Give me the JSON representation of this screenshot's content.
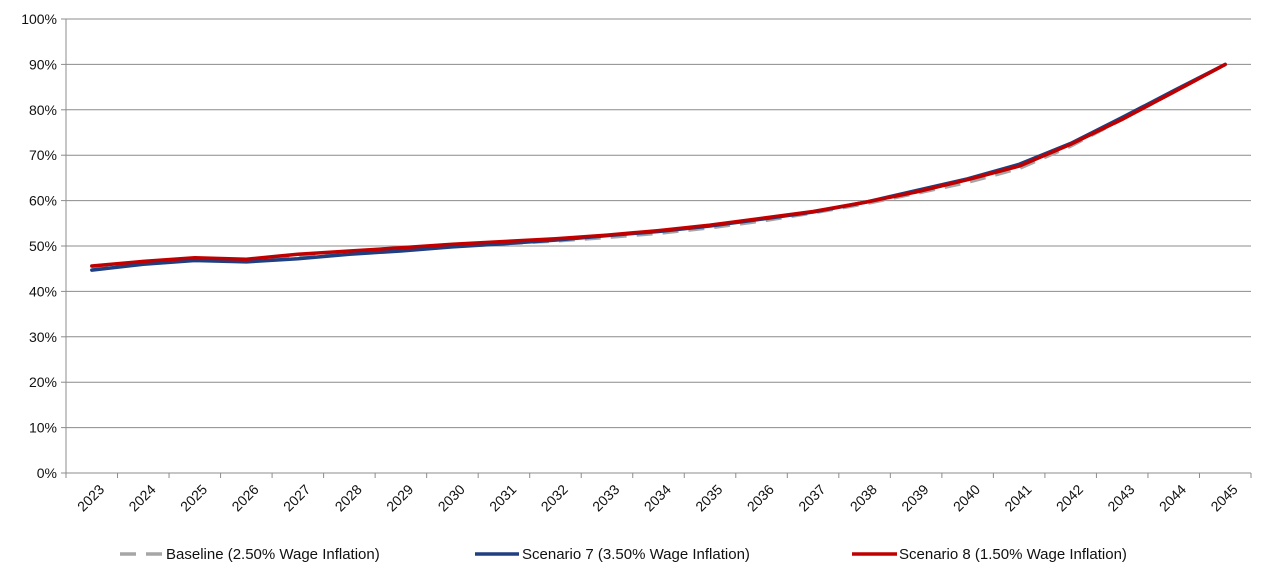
{
  "chart_data": {
    "type": "line",
    "title": "",
    "xlabel": "",
    "ylabel": "",
    "x": [
      "2023",
      "2024",
      "2025",
      "2026",
      "2027",
      "2028",
      "2029",
      "2030",
      "2031",
      "2032",
      "2033",
      "2034",
      "2035",
      "2036",
      "2037",
      "2038",
      "2039",
      "2040",
      "2041",
      "2042",
      "2043",
      "2044",
      "2045"
    ],
    "ylim": [
      0,
      100
    ],
    "y_ticks": [
      "0%",
      "10%",
      "20%",
      "30%",
      "40%",
      "50%",
      "60%",
      "70%",
      "80%",
      "90%",
      "100%"
    ],
    "grid": true,
    "legend_position": "bottom",
    "series": [
      {
        "name": "Baseline (2.50% Wage Inflation)",
        "color": "#a6a6a6",
        "style": "dashed",
        "values": [
          45.2,
          46.4,
          47.2,
          47.0,
          47.7,
          48.4,
          49.1,
          49.9,
          50.5,
          51.1,
          51.9,
          52.8,
          54.0,
          55.5,
          57.3,
          59.3,
          61.6,
          64.0,
          67.1,
          72.0,
          77.9,
          83.9,
          90.0
        ]
      },
      {
        "name": "Scenario 7 (3.50% Wage Inflation)",
        "color": "#1f3f80",
        "style": "solid",
        "values": [
          44.7,
          46.0,
          46.8,
          46.5,
          47.2,
          48.2,
          48.9,
          49.8,
          50.5,
          51.3,
          52.3,
          53.2,
          54.4,
          55.9,
          57.5,
          59.6,
          62.2,
          64.8,
          68.0,
          72.6,
          78.3,
          84.2,
          90.0
        ]
      },
      {
        "name": "Scenario 8 (1.50% Wage Inflation)",
        "color": "#c00000",
        "style": "solid",
        "values": [
          45.6,
          46.6,
          47.4,
          47.1,
          48.2,
          48.9,
          49.6,
          50.4,
          51.0,
          51.6,
          52.4,
          53.4,
          54.6,
          56.1,
          57.6,
          59.6,
          61.9,
          64.6,
          67.6,
          72.4,
          77.9,
          83.9,
          90.0
        ]
      }
    ]
  }
}
